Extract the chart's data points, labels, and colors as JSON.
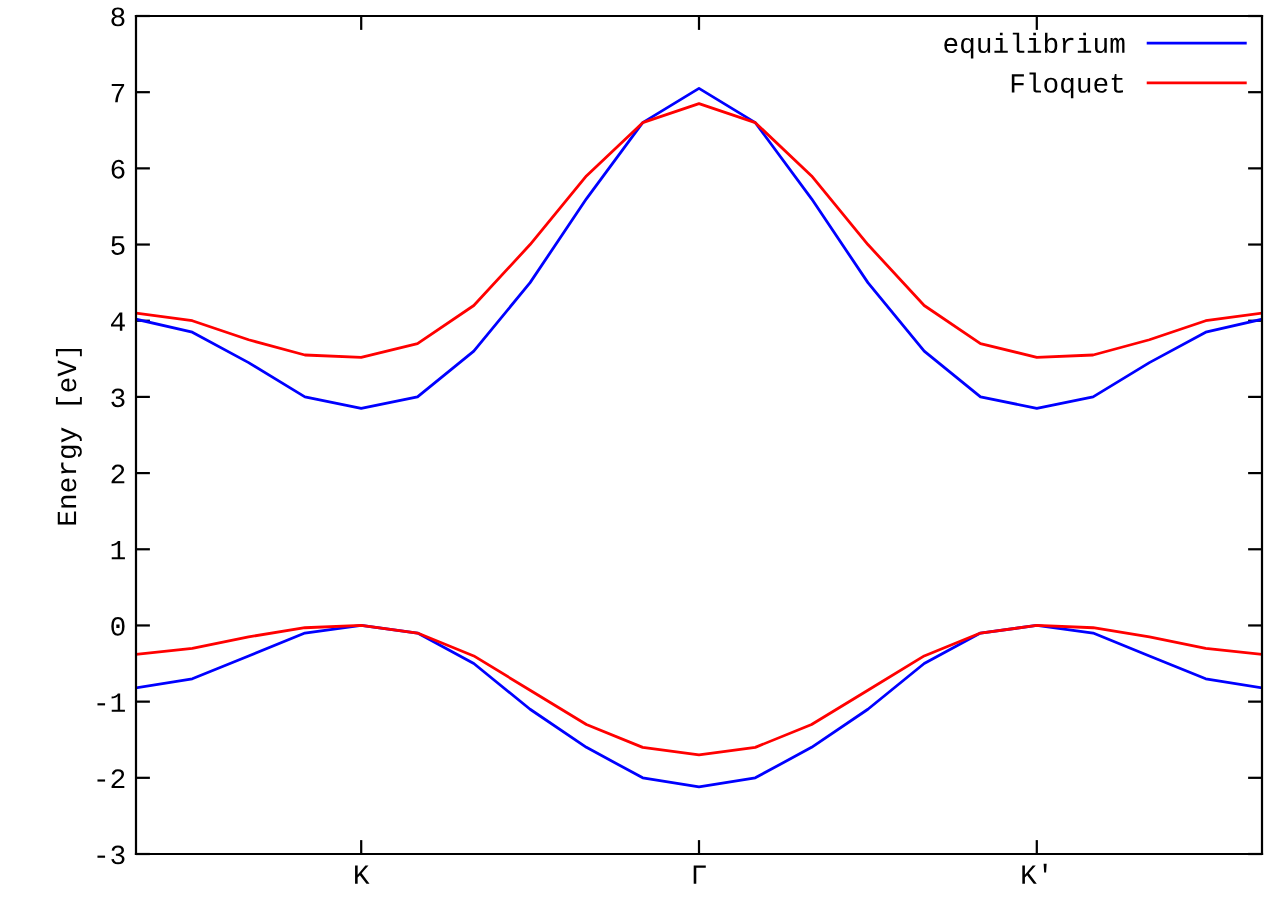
{
  "chart_data": {
    "type": "line",
    "ylabel": "Energy [eV]",
    "ylim": [
      -3,
      8
    ],
    "yticks": [
      -3,
      -2,
      -1,
      0,
      1,
      2,
      3,
      4,
      5,
      6,
      7,
      8
    ],
    "categories": [
      null,
      null,
      null,
      null,
      "K",
      null,
      null,
      null,
      null,
      null,
      "Γ",
      null,
      null,
      null,
      null,
      null,
      "K′",
      null,
      null,
      null,
      null
    ],
    "series": [
      {
        "name": "equilibrium",
        "color": "#0000ff",
        "values": [
          4.02,
          3.85,
          3.45,
          3.0,
          2.85,
          3.0,
          3.6,
          4.5,
          5.6,
          6.6,
          7.05,
          6.6,
          5.6,
          4.5,
          3.6,
          3.0,
          2.85,
          3.0,
          3.45,
          3.85,
          4.02
        ]
      },
      {
        "color": "#0000ff",
        "values": [
          -0.82,
          -0.7,
          -0.4,
          -0.1,
          0,
          -0.1,
          -0.5,
          -1.1,
          -1.6,
          -2.0,
          -2.12,
          -2.0,
          -1.6,
          -1.1,
          -0.5,
          -0.1,
          0,
          -0.1,
          -0.4,
          -0.7,
          -0.82
        ]
      },
      {
        "name": "Floquet",
        "color": "#ff0000",
        "values": [
          4.1,
          4.0,
          3.75,
          3.55,
          3.52,
          3.7,
          4.2,
          5.0,
          5.9,
          6.6,
          6.85,
          6.6,
          5.9,
          5.0,
          4.2,
          3.7,
          3.52,
          3.55,
          3.75,
          4.0,
          4.1
        ]
      },
      {
        "color": "#ff0000",
        "values": [
          -0.38,
          -0.3,
          -0.15,
          -0.03,
          0,
          -0.1,
          -0.4,
          -0.85,
          -1.3,
          -1.6,
          -1.7,
          -1.6,
          -1.3,
          -0.85,
          -0.4,
          -0.1,
          0,
          -0.03,
          -0.15,
          -0.3,
          -0.38
        ]
      }
    ],
    "legend": "top right",
    "grid": false,
    "marker": "none",
    "line_style": "solid"
  }
}
